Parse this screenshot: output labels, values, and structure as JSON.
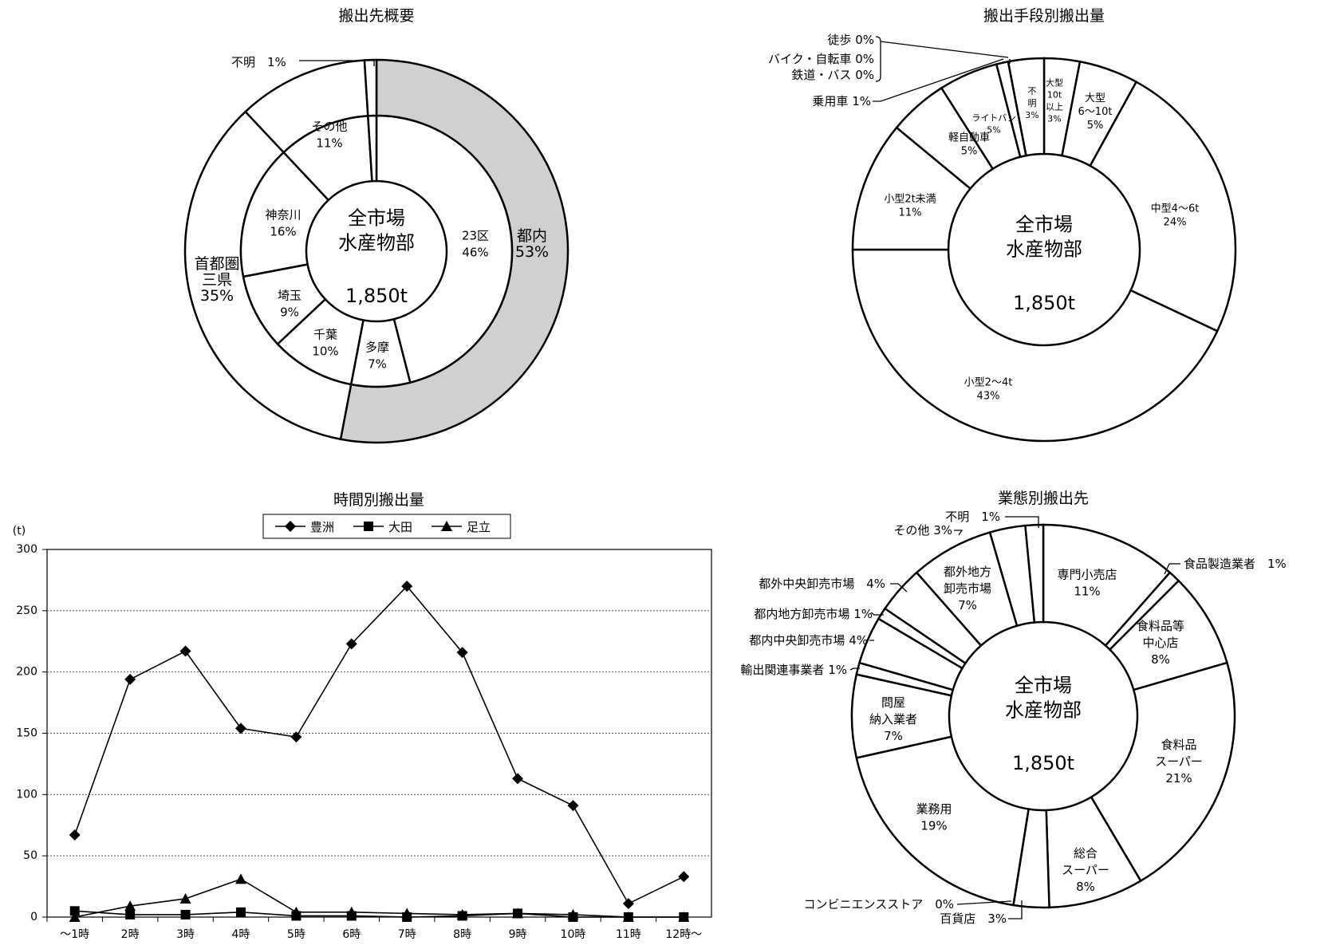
{
  "chart_data": [
    {
      "type": "pie",
      "title": "搬出先概要",
      "center_label": [
        "全市場",
        "水産物部"
      ],
      "center_value": "1,850t",
      "rings": [
        {
          "ring": "inner",
          "slices": [
            {
              "label": "23区",
              "value": 46,
              "value_label": "46%"
            },
            {
              "label": "多摩",
              "value": 7,
              "value_label": "7%"
            },
            {
              "label": "千葉",
              "value": 10,
              "value_label": "10%"
            },
            {
              "label": "埼玉",
              "value": 9,
              "value_label": "9%"
            },
            {
              "label": "神奈川",
              "value": 16,
              "value_label": "16%"
            },
            {
              "label": "その他",
              "value": 11,
              "value_label": "11%"
            },
            {
              "label": "不明",
              "value": 1,
              "value_label": "1%"
            }
          ]
        },
        {
          "ring": "outer",
          "slices": [
            {
              "label": "都内",
              "value": 53,
              "value_label": "53%",
              "color": "#d0d0d0"
            },
            {
              "label": "首都圏\n三県",
              "value": 35,
              "value_label": "35%",
              "color": "#ffffff"
            },
            {
              "label": "その他",
              "value": 11,
              "value_label": "11%",
              "color": "#ffffff"
            },
            {
              "label": "不明",
              "value": 1,
              "value_label": "1%",
              "color": "#ffffff"
            }
          ]
        }
      ],
      "callout_label": "不明　1%"
    },
    {
      "type": "pie",
      "title": "搬出手段別搬出量",
      "center_label": [
        "全市場",
        "水産物部"
      ],
      "center_value": "1,850t",
      "slices": [
        {
          "label": "大型\n10t\n以上",
          "value": 3,
          "value_label": "3%"
        },
        {
          "label": "大型\n6～10t",
          "value": 5,
          "value_label": "5%"
        },
        {
          "label": "中型4～6t",
          "value": 24,
          "value_label": "24%"
        },
        {
          "label": "小型2～4t",
          "value": 43,
          "value_label": "43%"
        },
        {
          "label": "小型2t未満",
          "value": 11,
          "value_label": "11%"
        },
        {
          "label": "軽自動車",
          "value": 5,
          "value_label": "5%"
        },
        {
          "label": "ライトバン",
          "value": 5,
          "value_label": "5%"
        },
        {
          "label": "乗用車",
          "value": 1,
          "value_label": "1%"
        },
        {
          "label": "鉄道・バス",
          "value": 0,
          "value_label": "0%"
        },
        {
          "label": "バイク・自転車",
          "value": 0,
          "value_label": "0%"
        },
        {
          "label": "徒歩",
          "value": 0,
          "value_label": "0%"
        },
        {
          "label": "不\n明",
          "value": 3,
          "value_label": "3%"
        }
      ]
    },
    {
      "type": "line",
      "title": "時間別搬出量",
      "ylabel": "(t)",
      "ylim": [
        0,
        300
      ],
      "yticks": [
        0,
        50,
        100,
        150,
        200,
        250,
        300
      ],
      "grid": "horizontal dotted",
      "legend_position": "top",
      "categories": [
        "～1時",
        "2時",
        "3時",
        "4時",
        "5時",
        "6時",
        "7時",
        "8時",
        "9時",
        "10時",
        "11時",
        "12時～"
      ],
      "series": [
        {
          "name": "豊洲",
          "marker": "diamond",
          "values": [
            67,
            194,
            217,
            154,
            147,
            223,
            270,
            216,
            113,
            91,
            11,
            33
          ]
        },
        {
          "name": "大田",
          "marker": "square",
          "values": [
            5,
            2,
            2,
            4,
            1,
            1,
            0,
            1,
            3,
            0,
            0,
            0
          ]
        },
        {
          "name": "足立",
          "marker": "triangle",
          "values": [
            0,
            9,
            15,
            31,
            4,
            4,
            3,
            2,
            3,
            2,
            0,
            0
          ]
        }
      ]
    },
    {
      "type": "pie",
      "title": "業態別搬出先",
      "center_label": [
        "全市場",
        "水産物部"
      ],
      "center_value": "1,850t",
      "slices": [
        {
          "label": "専門小売店",
          "value": 11,
          "value_label": "11%"
        },
        {
          "label": "食品製造業者",
          "value": 1,
          "value_label": "1%"
        },
        {
          "label": "食料品等\n中心店",
          "value": 8,
          "value_label": "8%"
        },
        {
          "label": "食料品\nスーパー",
          "value": 21,
          "value_label": "21%"
        },
        {
          "label": "総合\nスーパー",
          "value": 8,
          "value_label": "8%"
        },
        {
          "label": "百貨店",
          "value": 3,
          "value_label": "3%"
        },
        {
          "label": "コンビニエンスストア",
          "value": 0,
          "value_label": "0%"
        },
        {
          "label": "業務用",
          "value": 19,
          "value_label": "19%"
        },
        {
          "label": "問屋\n納入業者",
          "value": 7,
          "value_label": "7%"
        },
        {
          "label": "輸出関連事業者",
          "value": 1,
          "value_label": "1%"
        },
        {
          "label": "都内中央卸売市場",
          "value": 4,
          "value_label": "4%"
        },
        {
          "label": "都内地方卸売市場",
          "value": 1,
          "value_label": "1%"
        },
        {
          "label": "都外中央卸売市場",
          "value": 4,
          "value_label": "4%"
        },
        {
          "label": "都外地方\n卸売市場",
          "value": 7,
          "value_label": "7%"
        },
        {
          "label": "その他",
          "value": 3,
          "value_label": "3%"
        },
        {
          "label": "不明",
          "value": 1,
          "value_label": "1%"
        }
      ]
    }
  ]
}
